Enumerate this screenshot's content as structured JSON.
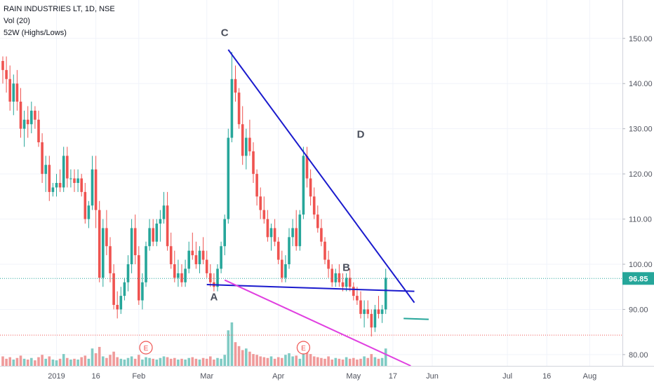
{
  "legend": {
    "symbol": "RAIN INDUSTRIES LT, 1D, NSE",
    "volume": "Vol (20)",
    "indicator": "52W (Highs/Lows)"
  },
  "chart_data": {
    "type": "candlestick",
    "symbol": "RAIN INDUSTRIES LT",
    "interval": "1D",
    "exchange": "NSE",
    "last_price": 96.85,
    "last_price_label": "96.85",
    "ylim": [
      77.5,
      158.5
    ],
    "y_ticks": [
      80.0,
      90.0,
      100.0,
      110.0,
      120.0,
      130.0,
      140.0,
      150.0
    ],
    "y_tick_labels": [
      "80.00",
      "90.00",
      "100.00",
      "110.00",
      "120.00",
      "130.00",
      "140.00",
      "150.00"
    ],
    "x_ticks": [
      {
        "label": "2019",
        "index": 15
      },
      {
        "label": "16",
        "index": 26
      },
      {
        "label": "Feb",
        "index": 38
      },
      {
        "label": "Mar",
        "index": 57
      },
      {
        "label": "Apr",
        "index": 77
      },
      {
        "label": "May",
        "index": 98
      },
      {
        "label": "17",
        "index": 109
      },
      {
        "label": "Jun",
        "index": 120
      },
      {
        "label": "Jul",
        "index": 141
      },
      {
        "label": "16",
        "index": 152
      },
      {
        "label": "Aug",
        "index": 164
      }
    ],
    "up_color": "#26a69a",
    "down_color": "#ef5350",
    "volume_up_color": "#80cbc4",
    "volume_down_color": "#ef9a9a",
    "price_line_color": "#26a69a",
    "low52_line_color": "#ef5350",
    "low52_level": 84.3,
    "candles": [
      [
        145,
        146,
        140,
        143
      ],
      [
        143,
        146,
        138,
        141
      ],
      [
        141,
        144,
        134,
        136
      ],
      [
        136,
        142,
        133,
        140
      ],
      [
        140,
        143,
        134,
        136
      ],
      [
        136,
        139,
        128,
        130
      ],
      [
        130,
        134,
        126,
        132
      ],
      [
        132,
        135,
        128,
        131
      ],
      [
        131,
        136,
        129,
        134
      ],
      [
        134,
        135,
        130,
        132
      ],
      [
        132,
        134,
        126,
        127
      ],
      [
        127,
        129,
        118,
        120
      ],
      [
        120,
        124,
        116,
        122
      ],
      [
        122,
        124,
        114,
        116
      ],
      [
        116,
        118,
        115,
        117
      ],
      [
        117,
        120,
        115,
        118
      ],
      [
        118,
        121,
        116,
        117
      ],
      [
        117,
        126,
        116,
        124
      ],
      [
        124,
        126,
        117,
        119
      ],
      [
        119,
        121,
        117,
        119
      ],
      [
        119,
        121,
        116,
        118
      ],
      [
        118,
        121,
        116,
        119
      ],
      [
        119,
        120,
        115,
        116
      ],
      [
        116,
        118,
        109,
        110
      ],
      [
        110,
        114,
        108,
        113
      ],
      [
        113,
        124,
        112,
        121
      ],
      [
        121,
        124,
        108,
        112
      ],
      [
        112,
        114,
        96,
        97
      ],
      [
        97,
        110,
        95,
        108
      ],
      [
        108,
        112,
        102,
        104
      ],
      [
        104,
        106,
        96,
        98
      ],
      [
        98,
        100,
        90,
        91
      ],
      [
        91,
        94,
        88,
        90
      ],
      [
        90,
        95,
        89,
        93
      ],
      [
        93,
        97,
        92,
        96
      ],
      [
        96,
        102,
        94,
        100
      ],
      [
        100,
        110,
        98,
        108
      ],
      [
        108,
        111,
        100,
        102
      ],
      [
        102,
        104,
        91,
        92
      ],
      [
        92,
        98,
        90,
        96
      ],
      [
        96,
        105,
        95,
        104
      ],
      [
        104,
        110,
        103,
        108
      ],
      [
        108,
        110,
        104,
        105
      ],
      [
        105,
        110,
        104,
        109
      ],
      [
        109,
        112,
        105,
        110
      ],
      [
        110,
        116,
        109,
        113
      ],
      [
        113,
        116,
        103,
        104
      ],
      [
        104,
        107,
        99,
        100
      ],
      [
        100,
        103,
        96,
        97
      ],
      [
        97,
        101,
        95,
        98
      ],
      [
        98,
        100,
        95,
        96
      ],
      [
        96,
        101,
        95,
        99
      ],
      [
        99,
        105,
        98,
        103
      ],
      [
        103,
        107,
        101,
        102
      ],
      [
        102,
        105,
        99,
        100
      ],
      [
        100,
        104,
        98,
        103
      ],
      [
        103,
        106,
        100,
        101
      ],
      [
        101,
        103,
        97,
        98
      ],
      [
        98,
        100,
        95,
        96
      ],
      [
        96,
        98,
        94,
        95
      ],
      [
        95,
        100,
        94,
        99
      ],
      [
        99,
        105,
        98,
        104
      ],
      [
        104,
        111,
        102,
        110
      ],
      [
        110,
        130,
        109,
        128
      ],
      [
        128,
        147,
        127,
        141
      ],
      [
        141,
        144,
        136,
        138
      ],
      [
        138,
        139,
        130,
        131
      ],
      [
        131,
        135,
        122,
        124
      ],
      [
        124,
        130,
        121,
        128
      ],
      [
        128,
        132,
        124,
        125
      ],
      [
        125,
        127,
        118,
        120
      ],
      [
        120,
        121,
        113,
        115
      ],
      [
        115,
        117,
        110,
        112
      ],
      [
        112,
        115,
        109,
        110
      ],
      [
        110,
        112,
        105,
        106
      ],
      [
        106,
        109,
        103,
        108
      ],
      [
        108,
        110,
        104,
        105
      ],
      [
        105,
        106,
        100,
        101
      ],
      [
        101,
        103,
        96,
        97
      ],
      [
        97,
        102,
        96,
        100
      ],
      [
        100,
        108,
        99,
        106
      ],
      [
        106,
        110,
        104,
        108
      ],
      [
        108,
        112,
        103,
        104
      ],
      [
        104,
        112,
        103,
        111
      ],
      [
        111,
        126,
        110,
        124
      ],
      [
        124,
        126,
        117,
        119
      ],
      [
        119,
        121,
        113,
        115
      ],
      [
        115,
        117,
        110,
        111
      ],
      [
        111,
        113,
        107,
        108
      ],
      [
        108,
        110,
        104,
        105
      ],
      [
        105,
        106,
        100,
        101
      ],
      [
        101,
        103,
        97,
        99
      ],
      [
        99,
        100,
        95,
        96
      ],
      [
        96,
        99,
        95,
        98
      ],
      [
        98,
        100,
        95,
        96
      ],
      [
        96,
        98,
        94,
        95
      ],
      [
        95,
        98,
        94,
        97
      ],
      [
        97,
        99,
        94,
        95
      ],
      [
        95,
        96,
        92,
        93
      ],
      [
        93,
        95,
        91,
        92
      ],
      [
        92,
        94,
        88,
        89
      ],
      [
        89,
        92,
        86,
        90
      ],
      [
        90,
        92,
        88,
        89
      ],
      [
        89,
        90,
        84,
        86
      ],
      [
        86,
        91,
        85,
        90
      ],
      [
        90,
        93,
        88,
        89
      ],
      [
        89,
        91,
        87,
        90
      ],
      [
        90,
        99,
        89,
        97
      ]
    ],
    "volume": [
      12,
      9,
      11,
      8,
      10,
      13,
      9,
      8,
      10,
      7,
      11,
      14,
      9,
      12,
      8,
      7,
      9,
      15,
      10,
      8,
      9,
      8,
      11,
      13,
      9,
      22,
      16,
      24,
      12,
      10,
      14,
      18,
      11,
      9,
      8,
      10,
      12,
      9,
      14,
      8,
      11,
      10,
      9,
      8,
      10,
      12,
      11,
      9,
      10,
      8,
      9,
      8,
      10,
      11,
      9,
      8,
      10,
      9,
      12,
      8,
      10,
      9,
      14,
      45,
      55,
      30,
      25,
      20,
      22,
      18,
      15,
      14,
      12,
      11,
      10,
      12,
      9,
      11,
      10,
      14,
      16,
      12,
      13,
      9,
      25,
      20,
      15,
      12,
      11,
      10,
      9,
      12,
      8,
      10,
      9,
      8,
      11,
      9,
      10,
      8,
      9,
      12,
      10,
      15,
      11,
      9,
      10,
      22
    ],
    "earnings_markers": [
      {
        "label": "E",
        "index": 40
      },
      {
        "label": "E",
        "index": 84
      }
    ],
    "annotations": [
      {
        "label": "A",
        "index": 59,
        "price": 92.0
      },
      {
        "label": "B",
        "index": 96,
        "price": 98.5
      },
      {
        "label": "C",
        "index": 62,
        "price": 150.5
      },
      {
        "label": "D",
        "index": 100,
        "price": 128.0
      }
    ],
    "trend_lines": [
      {
        "name": "resistance",
        "color": "#1a1acd",
        "from": {
          "index": 63,
          "price": 147.5
        },
        "to": {
          "index": 115,
          "price": 91.5
        }
      },
      {
        "name": "support",
        "color": "#1a1acd",
        "from": {
          "index": 57,
          "price": 95.5
        },
        "to": {
          "index": 115,
          "price": 94.0
        }
      },
      {
        "name": "lower",
        "color": "#e040e0",
        "from": {
          "index": 62,
          "price": 96.5
        },
        "to": {
          "index": 114,
          "price": 77.5
        }
      },
      {
        "name": "target",
        "color": "#26a69a",
        "from": {
          "index": 112,
          "price": 88.0
        },
        "to": {
          "index": 119,
          "price": 87.8
        }
      }
    ]
  }
}
